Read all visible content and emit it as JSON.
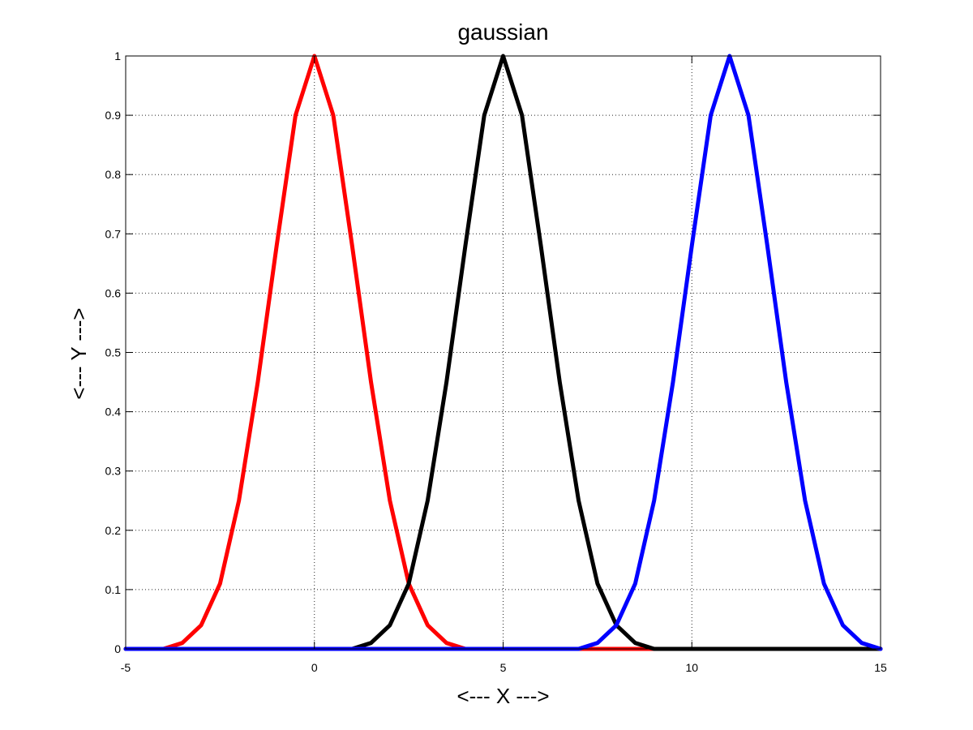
{
  "chart_data": {
    "type": "line",
    "title": "gaussian",
    "xlabel": "<--- X --->",
    "ylabel": "<--- Y --->",
    "xlim": [
      -5,
      15
    ],
    "ylim": [
      0,
      1
    ],
    "xticks": [
      -5,
      0,
      5,
      10,
      15
    ],
    "yticks": [
      0,
      0.1,
      0.2,
      0.3,
      0.4,
      0.5,
      0.6,
      0.7,
      0.8,
      0.9,
      1
    ],
    "grid": true,
    "x": [
      -5,
      -4.5,
      -4,
      -3.5,
      -3,
      -2.5,
      -2,
      -1.5,
      -1,
      -0.5,
      0,
      0.5,
      1,
      1.5,
      2,
      2.5,
      3,
      3.5,
      4,
      4.5,
      5,
      5.5,
      6,
      6.5,
      7,
      7.5,
      8,
      8.5,
      9,
      9.5,
      10,
      10.5,
      11,
      11.5,
      12,
      12.5,
      13,
      13.5,
      14,
      14.5,
      15
    ],
    "series": [
      {
        "color": "#ff0000",
        "values": [
          0.0,
          0.0,
          0.0,
          0.01,
          0.04,
          0.11,
          0.25,
          0.45,
          0.68,
          0.9,
          1.0,
          0.9,
          0.68,
          0.45,
          0.25,
          0.11,
          0.04,
          0.01,
          0.0,
          0.0,
          0.0,
          0.0,
          0.0,
          0.0,
          0.0,
          0.0,
          0.0,
          0.0,
          0.0,
          0.0,
          0.0,
          0.0,
          0.0,
          0.0,
          0.0,
          0.0,
          0.0,
          0.0,
          0.0,
          0.0,
          0.0
        ]
      },
      {
        "color": "#000000",
        "values": [
          0.0,
          0.0,
          0.0,
          0.0,
          0.0,
          0.0,
          0.0,
          0.0,
          0.0,
          0.0,
          0.0,
          0.0,
          0.0,
          0.01,
          0.04,
          0.11,
          0.25,
          0.45,
          0.68,
          0.9,
          1.0,
          0.9,
          0.68,
          0.45,
          0.25,
          0.11,
          0.04,
          0.01,
          0.0,
          0.0,
          0.0,
          0.0,
          0.0,
          0.0,
          0.0,
          0.0,
          0.0,
          0.0,
          0.0,
          0.0,
          0.0
        ]
      },
      {
        "color": "#0000ff",
        "values": [
          0.0,
          0.0,
          0.0,
          0.0,
          0.0,
          0.0,
          0.0,
          0.0,
          0.0,
          0.0,
          0.0,
          0.0,
          0.0,
          0.0,
          0.0,
          0.0,
          0.0,
          0.0,
          0.0,
          0.0,
          0.0,
          0.0,
          0.0,
          0.0,
          0.0,
          0.01,
          0.04,
          0.11,
          0.25,
          0.45,
          0.68,
          0.9,
          1.0,
          0.9,
          0.68,
          0.45,
          0.25,
          0.11,
          0.04,
          0.01,
          0.0
        ]
      }
    ]
  }
}
